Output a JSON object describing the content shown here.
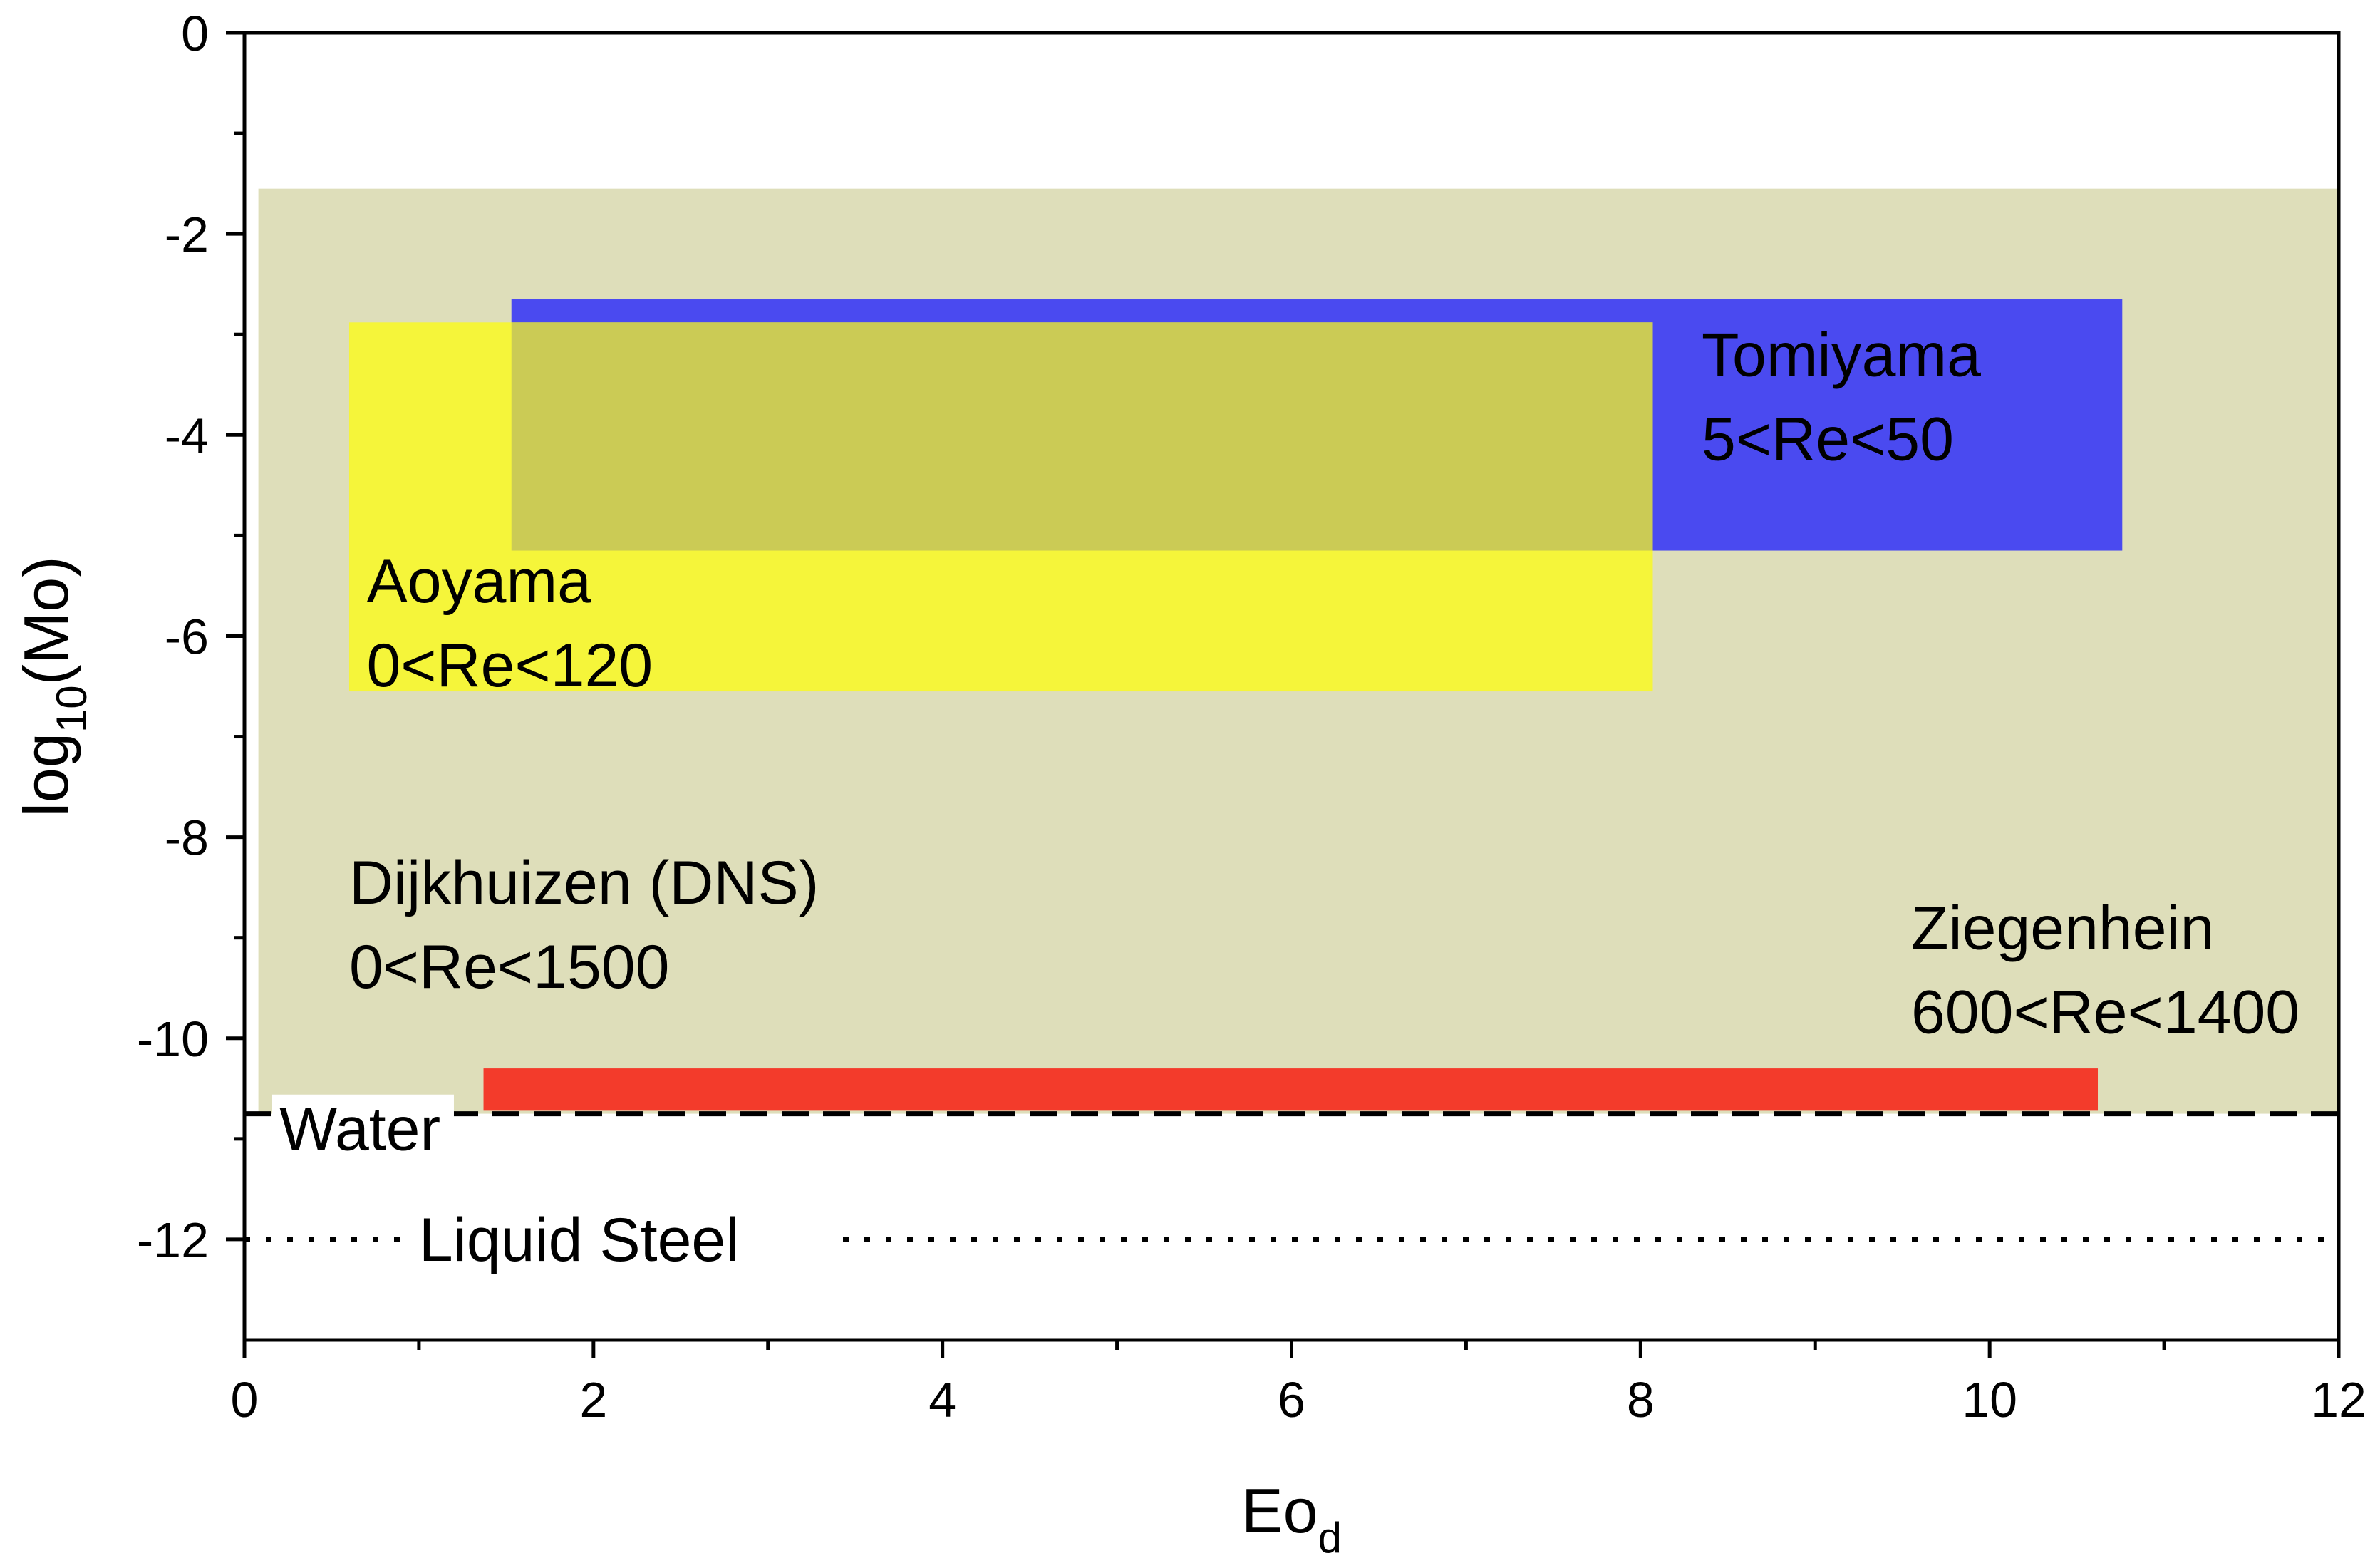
{
  "chart_data": {
    "type": "area",
    "xlabel": "Eo",
    "xlabel_subscript": "d",
    "ylabel": "log",
    "ylabel_subscript": "10",
    "ylabel_suffix": "(Mo)",
    "xlim": [
      0,
      12
    ],
    "ylim": [
      -13,
      0
    ],
    "xticks": [
      0,
      2,
      4,
      6,
      8,
      10,
      12
    ],
    "yticks": [
      0,
      -2,
      -4,
      -6,
      -8,
      -10,
      -12
    ],
    "xtick_labels": [
      "0",
      "2",
      "4",
      "6",
      "8",
      "10",
      "12"
    ],
    "ytick_labels": [
      "0",
      "-2",
      "-4",
      "-6",
      "-8",
      "-10",
      "-12"
    ],
    "regions": [
      {
        "name": "Dijkhuizen (DNS)",
        "range": "0<Re<1500",
        "x": [
          0.08,
          12
        ],
        "y": [
          -10.75,
          -1.55
        ],
        "color": "#dedeba",
        "opacity": 1
      },
      {
        "name": "Tomiyama",
        "range": "5<Re<50",
        "x": [
          1.53,
          10.76
        ],
        "y": [
          -5.15,
          -2.65
        ],
        "color": "#4a4af0",
        "opacity": 1
      },
      {
        "name": "Aoyama",
        "range": "0<Re<120",
        "x": [
          0.6,
          8.07
        ],
        "y": [
          -6.55,
          -2.88
        ],
        "color": "#f5f53a",
        "opacity": 1
      },
      {
        "name": "overlap",
        "range": "",
        "x": [
          1.53,
          8.07
        ],
        "y": [
          -5.15,
          -2.88
        ],
        "color": "#cbcb55",
        "opacity": 1
      },
      {
        "name": "Ziegenhein",
        "range": "600<Re<1400",
        "x": [
          1.37,
          10.62
        ],
        "y": [
          -10.72,
          -10.3
        ],
        "color": "#f33b2b",
        "opacity": 1
      }
    ],
    "reference_lines": [
      {
        "name": "Water",
        "y": -10.75,
        "style": "dashed"
      },
      {
        "name": "Liquid Steel",
        "y": -12.0,
        "style": "dotted"
      }
    ],
    "annotations": [
      {
        "lines": [
          "Tomiyama",
          "5<Re<50"
        ],
        "x": 8.35,
        "y": -3.2
      },
      {
        "lines": [
          "Aoyama",
          "0<Re<120"
        ],
        "x": 0.7,
        "y": -5.45
      },
      {
        "lines": [
          "Dijkhuizen (DNS)",
          "0<Re<1500"
        ],
        "x": 0.6,
        "y": -8.45
      },
      {
        "lines": [
          "Ziegenhein",
          "600<Re<1400"
        ],
        "x": 9.55,
        "y": -8.9
      },
      {
        "lines": [
          "Water"
        ],
        "x": 0.2,
        "y": -10.9
      },
      {
        "lines": [
          "Liquid Steel"
        ],
        "x": 1.0,
        "y": -12.0
      }
    ]
  }
}
